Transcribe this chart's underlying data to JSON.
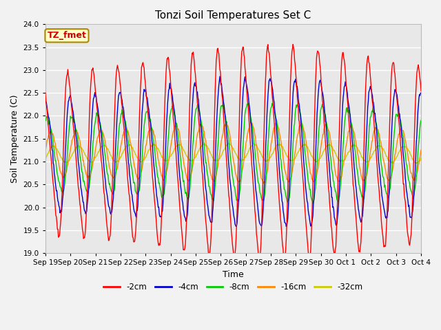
{
  "title": "Tonzi Soil Temperatures Set C",
  "xlabel": "Time",
  "ylabel": "Soil Temperature (C)",
  "ylim": [
    19.0,
    24.0
  ],
  "yticks": [
    19.0,
    19.5,
    20.0,
    20.5,
    21.0,
    21.5,
    22.0,
    22.5,
    23.0,
    23.5,
    24.0
  ],
  "annotation": "TZ_fmet",
  "annotation_color": "#cc0000",
  "annotation_bg": "#ffffcc",
  "annotation_border": "#aa8800",
  "series_colors": [
    "#ff0000",
    "#0000cc",
    "#00cc00",
    "#ff8800",
    "#cccc00"
  ],
  "series_labels": [
    "-2cm",
    "-4cm",
    "-8cm",
    "-16cm",
    "-32cm"
  ],
  "bg_color": "#e8e8e8",
  "grid_color": "#ffffff",
  "xtick_labels": [
    "Sep 19",
    "Sep 20",
    "Sep 21",
    "Sep 22",
    "Sep 23",
    "Sep 24",
    "Sep 25",
    "Sep 26",
    "Sep 27",
    "Sep 28",
    "Sep 29",
    "Sep 30",
    "Oct 1",
    "Oct 2",
    "Oct 3",
    "Oct 4"
  ],
  "num_points": 720,
  "total_days": 15
}
